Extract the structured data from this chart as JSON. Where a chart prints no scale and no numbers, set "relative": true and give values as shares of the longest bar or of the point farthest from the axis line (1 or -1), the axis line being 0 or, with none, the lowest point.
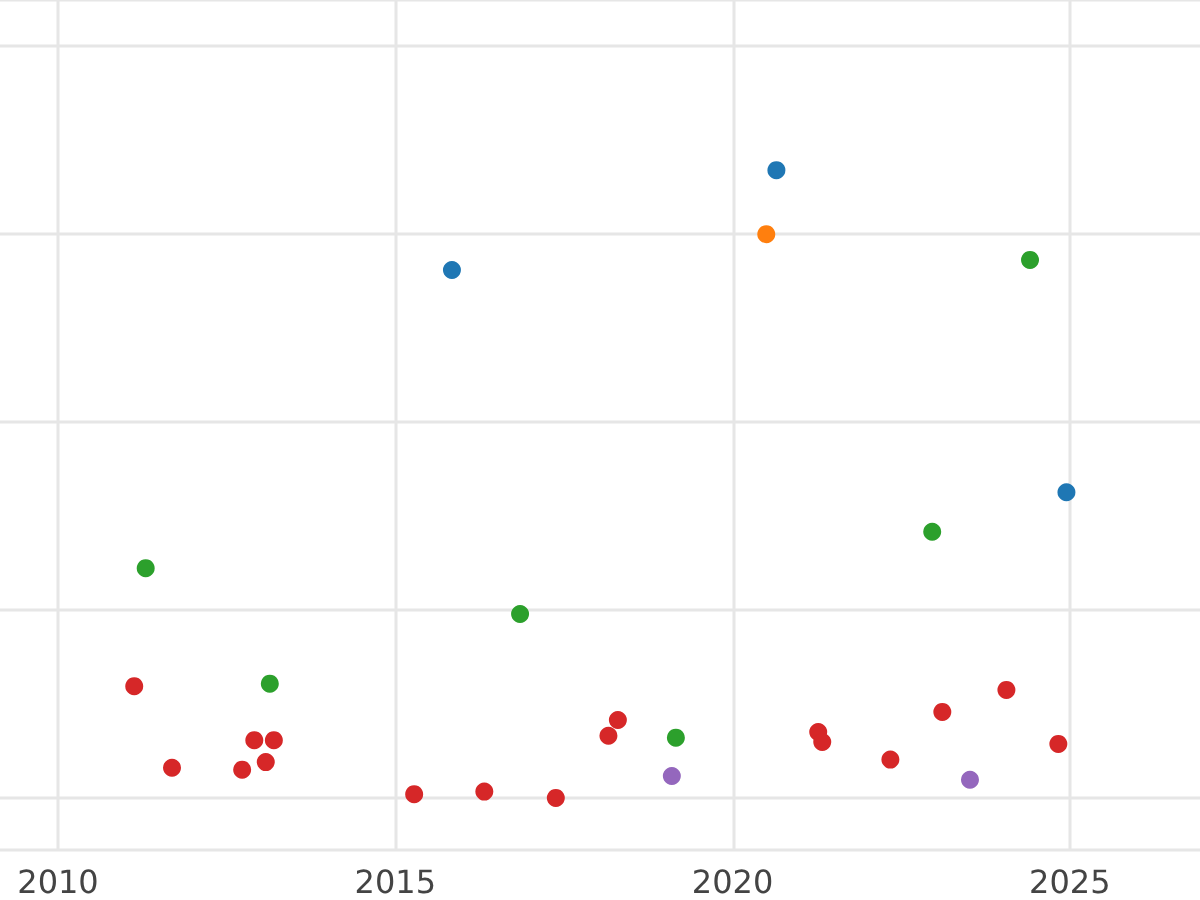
{
  "chart_data": {
    "type": "scatter",
    "relative": true,
    "marker": "circle",
    "grid": true,
    "xlim": [
      2009.14,
      2026.93
    ],
    "xticks": [
      2010,
      2015,
      2020,
      2025
    ],
    "series": [
      {
        "color": "#1f77b4",
        "x": [
          2015.84,
          2020.65,
          2024.95
        ],
        "values": [
          0.841,
          1.0,
          0.487
        ]
      },
      {
        "color": "#ff7f0e",
        "x": [
          2020.5
        ],
        "values": [
          0.898
        ]
      },
      {
        "color": "#2ca02c",
        "x": [
          2011.3,
          2013.14,
          2016.85,
          2019.16,
          2022.96,
          2024.41
        ],
        "values": [
          0.366,
          0.182,
          0.293,
          0.096,
          0.424,
          0.857
        ]
      },
      {
        "color": "#d62728",
        "x": [
          2011.13,
          2011.69,
          2012.73,
          2012.91,
          2013.08,
          2013.2,
          2015.28,
          2016.32,
          2017.38,
          2018.16,
          2018.3,
          2021.27,
          2021.33,
          2022.34,
          2023.11,
          2024.06,
          2024.83
        ],
        "values": [
          0.178,
          0.048,
          0.045,
          0.092,
          0.057,
          0.092,
          0.006,
          0.01,
          0.0,
          0.099,
          0.124,
          0.105,
          0.089,
          0.061,
          0.137,
          0.172,
          0.086
        ]
      },
      {
        "color": "#9467bd",
        "x": [
          2019.1,
          2023.52
        ],
        "values": [
          0.035,
          0.029
        ]
      }
    ]
  }
}
